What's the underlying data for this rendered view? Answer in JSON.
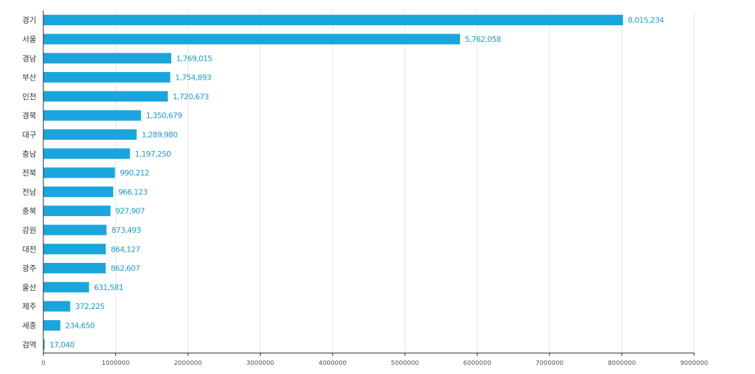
{
  "chart_data": {
    "type": "bar",
    "orientation": "horizontal",
    "title": "",
    "xlabel": "",
    "ylabel": "",
    "categories": [
      "경기",
      "서울",
      "경남",
      "부산",
      "인천",
      "경북",
      "대구",
      "충남",
      "전북",
      "전남",
      "충북",
      "강원",
      "대전",
      "광주",
      "울산",
      "제주",
      "세종",
      "검역"
    ],
    "values": [
      8015234,
      5762058,
      1769015,
      1754893,
      1720673,
      1350679,
      1289980,
      1197250,
      990212,
      966123,
      927907,
      873493,
      864127,
      862607,
      631581,
      372225,
      234650,
      17040
    ],
    "value_labels": [
      "8,015,234",
      "5,762,058",
      "1,769,015",
      "1,754,893",
      "1,720,673",
      "1,350,679",
      "1,289,980",
      "1,197,250",
      "990,212",
      "966,123",
      "927,907",
      "873,493",
      "864,127",
      "862,607",
      "631,581",
      "372,225",
      "234,650",
      "17,040"
    ],
    "xlim": [
      0,
      9000000
    ],
    "xticks": [
      0,
      1000000,
      2000000,
      3000000,
      4000000,
      5000000,
      6000000,
      7000000,
      8000000,
      9000000
    ],
    "xtick_labels": [
      "0",
      "1000000",
      "2000000",
      "3000000",
      "4000000",
      "5000000",
      "6000000",
      "7000000",
      "8000000",
      "9000000"
    ],
    "grid": "vertical",
    "legend": "none",
    "bar_color": "#1aa6dc",
    "label_color": "#1a9cc8"
  }
}
